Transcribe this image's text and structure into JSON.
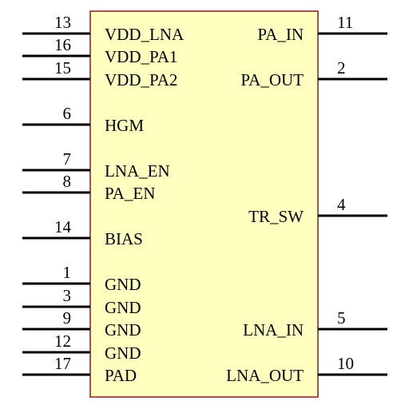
{
  "component": {
    "body_fill": "#ffffc0",
    "body_stroke": "#8b1a1a",
    "left_pins": [
      {
        "number": "13",
        "name": "VDD_LNA"
      },
      {
        "number": "16",
        "name": "VDD_PA1"
      },
      {
        "number": "15",
        "name": "VDD_PA2"
      },
      {
        "number": "6",
        "name": "HGM"
      },
      {
        "number": "7",
        "name": "LNA_EN"
      },
      {
        "number": "8",
        "name": "PA_EN"
      },
      {
        "number": "14",
        "name": "BIAS"
      },
      {
        "number": "1",
        "name": "GND"
      },
      {
        "number": "3",
        "name": "GND"
      },
      {
        "number": "9",
        "name": "GND"
      },
      {
        "number": "12",
        "name": "GND"
      },
      {
        "number": "17",
        "name": "PAD"
      }
    ],
    "right_pins": [
      {
        "number": "11",
        "name": "PA_IN"
      },
      {
        "number": "2",
        "name": "PA_OUT"
      },
      {
        "number": "4",
        "name": "TR_SW"
      },
      {
        "number": "5",
        "name": "LNA_IN"
      },
      {
        "number": "10",
        "name": "LNA_OUT"
      }
    ]
  }
}
